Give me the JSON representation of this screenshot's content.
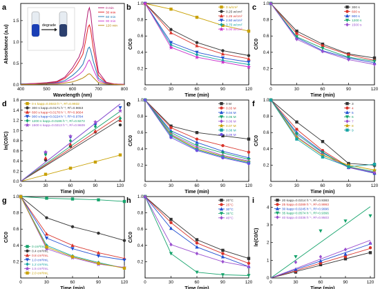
{
  "chart_data": [
    {
      "id": "a",
      "type": "line",
      "panel_label": "a",
      "xlabel": "Wavelength (nm)",
      "ylabel": "Absorbance (a.u)",
      "xlim": [
        400,
        800
      ],
      "xticks": [
        400,
        500,
        600,
        700,
        800
      ],
      "ylim": [
        0,
        1.9
      ],
      "inset_label": "degrade",
      "legend_position": "top-right",
      "colors": [
        "#000000",
        "#ff0000",
        "#0000ff",
        "#ff00ff",
        "#7f3f00"
      ],
      "series": [
        {
          "name": "0 min",
          "color": "#b0156d",
          "x": [
            400,
            450,
            500,
            540,
            570,
            600,
            615,
            625,
            640,
            650,
            660,
            665,
            670,
            680,
            700,
            730,
            760,
            800
          ],
          "y": [
            0.02,
            0.03,
            0.05,
            0.08,
            0.18,
            0.4,
            0.55,
            0.65,
            0.9,
            1.3,
            1.72,
            1.8,
            1.65,
            1.1,
            0.3,
            0.06,
            0.02,
            0.01
          ]
        },
        {
          "name": "30 min",
          "color": "#e31a1c",
          "x": [
            400,
            450,
            500,
            540,
            570,
            600,
            615,
            625,
            640,
            650,
            660,
            665,
            670,
            680,
            700,
            730,
            760,
            800
          ],
          "y": [
            0.02,
            0.03,
            0.04,
            0.07,
            0.15,
            0.32,
            0.45,
            0.55,
            0.72,
            1.02,
            1.35,
            1.4,
            1.28,
            0.85,
            0.22,
            0.05,
            0.02,
            0.01
          ]
        },
        {
          "name": "60 min",
          "color": "#1f78b4",
          "x": [
            400,
            450,
            500,
            540,
            570,
            600,
            615,
            625,
            640,
            650,
            660,
            665,
            670,
            680,
            700,
            730,
            760,
            800
          ],
          "y": [
            0.02,
            0.02,
            0.03,
            0.05,
            0.1,
            0.22,
            0.3,
            0.36,
            0.48,
            0.65,
            0.85,
            0.88,
            0.8,
            0.55,
            0.15,
            0.04,
            0.01,
            0.01
          ]
        },
        {
          "name": "90 min",
          "color": "#cc33cc",
          "x": [
            400,
            450,
            500,
            540,
            570,
            600,
            615,
            625,
            640,
            650,
            660,
            665,
            670,
            680,
            700,
            730,
            760,
            800
          ],
          "y": [
            0.01,
            0.02,
            0.02,
            0.04,
            0.07,
            0.14,
            0.2,
            0.24,
            0.32,
            0.42,
            0.55,
            0.58,
            0.52,
            0.36,
            0.1,
            0.03,
            0.01,
            0.01
          ]
        },
        {
          "name": "120 min",
          "color": "#b8860b",
          "x": [
            400,
            450,
            500,
            540,
            570,
            600,
            615,
            625,
            640,
            650,
            660,
            665,
            670,
            680,
            700,
            730,
            760,
            800
          ],
          "y": [
            0.01,
            0.01,
            0.02,
            0.02,
            0.04,
            0.07,
            0.1,
            0.12,
            0.16,
            0.2,
            0.25,
            0.26,
            0.24,
            0.17,
            0.05,
            0.02,
            0.01,
            0.0
          ]
        }
      ]
    },
    {
      "id": "b",
      "type": "line",
      "panel_label": "b",
      "xlabel": "Time (min)",
      "ylabel": "C/C0",
      "xlim": [
        0,
        120
      ],
      "xticks": [
        0,
        30,
        60,
        90,
        120
      ],
      "ylim": [
        0.0,
        1.0
      ],
      "yticks": [
        0.2,
        0.4,
        0.6,
        0.8,
        1.0
      ],
      "legend_position": "top-right",
      "x": [
        0,
        30,
        60,
        90,
        120
      ],
      "series": [
        {
          "name": "0 w/cm²",
          "color": "#c8a000",
          "values": [
            1.0,
            0.93,
            0.83,
            0.73,
            0.66
          ]
        },
        {
          "name": "0.25 w/cm²",
          "color": "#333333",
          "values": [
            1.0,
            0.68,
            0.52,
            0.42,
            0.36
          ]
        },
        {
          "name": "1.25 w/cm²",
          "color": "#d9342b",
          "values": [
            1.0,
            0.64,
            0.48,
            0.38,
            0.32
          ]
        },
        {
          "name": "2.50 w/cm²",
          "color": "#1f4fd1",
          "values": [
            1.0,
            0.52,
            0.4,
            0.33,
            0.28
          ]
        },
        {
          "name": "3.75 w/cm²",
          "color": "#15a3a3",
          "values": [
            1.0,
            0.49,
            0.37,
            0.3,
            0.25
          ]
        },
        {
          "name": "5.00 w/cm²",
          "color": "#cc33cc",
          "values": [
            1.0,
            0.46,
            0.34,
            0.28,
            0.22
          ]
        }
      ]
    },
    {
      "id": "c",
      "type": "line",
      "panel_label": "c",
      "xlabel": "Time (min)",
      "ylabel": "C/C0",
      "xlim": [
        0,
        120
      ],
      "xticks": [
        0,
        30,
        60,
        90,
        120
      ],
      "ylim": [
        0.0,
        1.0
      ],
      "yticks": [
        0.2,
        0.4,
        0.6,
        0.8,
        1.0
      ],
      "legend_position": "top-right",
      "x": [
        0,
        30,
        60,
        90,
        120
      ],
      "series": [
        {
          "name": "300 s",
          "color": "#333333",
          "values": [
            1.0,
            0.66,
            0.5,
            0.38,
            0.33
          ]
        },
        {
          "name": "600 s",
          "color": "#d9342b",
          "values": [
            1.0,
            0.63,
            0.48,
            0.37,
            0.3
          ]
        },
        {
          "name": "900 s",
          "color": "#1f4fd1",
          "values": [
            1.0,
            0.58,
            0.42,
            0.33,
            0.27
          ]
        },
        {
          "name": "1200 s",
          "color": "#15a36b",
          "values": [
            1.0,
            0.59,
            0.45,
            0.34,
            0.29
          ]
        },
        {
          "name": "1500 s",
          "color": "#9a4fcf",
          "values": [
            1.0,
            0.56,
            0.41,
            0.31,
            0.25
          ]
        }
      ]
    },
    {
      "id": "d",
      "type": "scatter",
      "panel_label": "d",
      "xlabel": "Time (min)",
      "ylabel": "ln(C0/C)",
      "xlim": [
        0,
        125
      ],
      "xticks": [
        0,
        30,
        60,
        90,
        120
      ],
      "ylim": [
        0,
        1.6
      ],
      "legend_position": "top-left",
      "x": [
        0,
        30,
        60,
        90,
        120
      ],
      "series": [
        {
          "name": "0 s",
          "label": "0 s  kapp=0.0043 h⁻¹, R²=0.9932",
          "color": "#c8a000",
          "values": [
            0.0,
            0.14,
            0.26,
            0.38,
            0.52
          ]
        },
        {
          "name": "300 s",
          "label": "300 s  kapp=0.0171 h⁻¹, R²=0.9653",
          "color": "#333333",
          "values": [
            0.0,
            0.42,
            0.69,
            0.97,
            1.11
          ]
        },
        {
          "name": "600 s",
          "label": "600 s  kapp=0.0178 h⁻¹, R²=0.9664",
          "color": "#d9342b",
          "values": [
            0.0,
            0.46,
            0.73,
            0.99,
            1.2
          ]
        },
        {
          "name": "900 s",
          "label": "900 s  kapp=0.0224 h⁻¹, R²=0.9784",
          "color": "#1f4fd1",
          "values": [
            0.0,
            0.54,
            0.87,
            1.11,
            1.45
          ]
        },
        {
          "name": "1200 s",
          "label": "1200 s  kapp=0.0186 h⁻¹, R²=0.9272",
          "color": "#15a36b",
          "values": [
            0.0,
            0.53,
            0.8,
            1.08,
            1.24
          ]
        },
        {
          "name": "1500 s",
          "label": "1500 s  kapp=0.0213 h⁻¹, R²=0.9609",
          "color": "#9a4fcf",
          "values": [
            0.0,
            0.58,
            0.89,
            1.17,
            1.39
          ]
        }
      ]
    },
    {
      "id": "e",
      "type": "line",
      "panel_label": "e",
      "xlabel": "Time (min)",
      "ylabel": "C/C0",
      "xlim": [
        0,
        120
      ],
      "xticks": [
        0,
        30,
        60,
        90,
        120
      ],
      "ylim": [
        0.0,
        1.0
      ],
      "yticks": [
        0.2,
        0.4,
        0.6,
        0.8,
        1.0
      ],
      "legend_position": "top-right",
      "x": [
        0,
        30,
        60,
        90,
        120
      ],
      "series": [
        {
          "name": "0 M",
          "color": "#333333",
          "values": [
            1.0,
            0.68,
            0.6,
            0.56,
            0.52
          ]
        },
        {
          "name": "0.03 M",
          "color": "#d9342b",
          "values": [
            1.0,
            0.66,
            0.52,
            0.44,
            0.36
          ]
        },
        {
          "name": "0.04 M",
          "color": "#1f4fd1",
          "values": [
            1.0,
            0.62,
            0.48,
            0.37,
            0.29
          ]
        },
        {
          "name": "0.05 M",
          "color": "#15a36b",
          "values": [
            1.0,
            0.6,
            0.44,
            0.35,
            0.27
          ]
        },
        {
          "name": "0.06 M",
          "color": "#9a4fcf",
          "values": [
            1.0,
            0.58,
            0.42,
            0.32,
            0.25
          ]
        },
        {
          "name": "0.07 M",
          "color": "#c8a000",
          "values": [
            1.0,
            0.57,
            0.4,
            0.31,
            0.24
          ]
        },
        {
          "name": "0.08 M",
          "color": "#15a3a3",
          "values": [
            1.0,
            0.56,
            0.39,
            0.3,
            0.23
          ]
        },
        {
          "name": "0.09 M",
          "color": "#6a4fe0",
          "values": [
            1.0,
            0.54,
            0.38,
            0.29,
            0.22
          ]
        }
      ]
    },
    {
      "id": "f",
      "type": "line",
      "panel_label": "f",
      "xlabel": "Time (min)",
      "ylabel": "C/C0",
      "xlim": [
        0,
        120
      ],
      "xticks": [
        0,
        30,
        60,
        90,
        120
      ],
      "ylim": [
        0.0,
        1.0
      ],
      "yticks": [
        0.2,
        0.4,
        0.6,
        0.8,
        1.0
      ],
      "legend_position": "top-right",
      "x": [
        0,
        30,
        60,
        90,
        120
      ],
      "series": [
        {
          "name": "3",
          "color": "#333333",
          "values": [
            1.0,
            0.73,
            0.49,
            0.22,
            0.2
          ]
        },
        {
          "name": "4",
          "color": "#d9342b",
          "values": [
            1.0,
            0.64,
            0.38,
            0.18,
            0.1
          ]
        },
        {
          "name": "5",
          "color": "#1f4fd1",
          "values": [
            1.0,
            0.6,
            0.36,
            0.17,
            0.1
          ]
        },
        {
          "name": "6",
          "color": "#15a36b",
          "values": [
            1.0,
            0.58,
            0.35,
            0.18,
            0.12
          ]
        },
        {
          "name": "7",
          "color": "#9a4fcf",
          "values": [
            1.0,
            0.55,
            0.33,
            0.17,
            0.11
          ]
        },
        {
          "name": "8",
          "color": "#c8a000",
          "values": [
            1.0,
            0.54,
            0.32,
            0.2,
            0.14
          ]
        },
        {
          "name": "9",
          "color": "#15a3a3",
          "values": [
            1.0,
            0.52,
            0.3,
            0.18,
            0.21
          ]
        }
      ]
    },
    {
      "id": "g",
      "type": "line",
      "panel_label": "g",
      "xlabel": "Time (min)",
      "ylabel": "C/C0",
      "xlim": [
        0,
        120
      ],
      "xticks": [
        0,
        30,
        60,
        90,
        120
      ],
      "ylim": [
        0.0,
        1.0
      ],
      "yticks": [
        0.2,
        0.4,
        0.6,
        0.8,
        1.0
      ],
      "legend_position": "bottom-left",
      "x": [
        0,
        30,
        60,
        90,
        120
      ],
      "series": [
        {
          "name": "0 cm³/mL",
          "color": "#15a36b",
          "values": [
            1.0,
            0.98,
            0.97,
            0.96,
            0.94
          ]
        },
        {
          "name": "0.4 cm³/mL",
          "color": "#333333",
          "values": [
            1.0,
            0.74,
            0.63,
            0.55,
            0.46
          ]
        },
        {
          "name": "0.8 cm³/mL",
          "color": "#d9342b",
          "values": [
            1.0,
            0.54,
            0.4,
            0.31,
            0.24
          ]
        },
        {
          "name": "1.0 cm³/mL",
          "color": "#1f4fd1",
          "values": [
            1.0,
            0.49,
            0.36,
            0.27,
            0.22
          ]
        },
        {
          "name": "1.2 cm³/mL",
          "color": "#15a3a3",
          "values": [
            1.0,
            0.4,
            0.27,
            0.19,
            0.12
          ]
        },
        {
          "name": "1.5 cm³/mL",
          "color": "#9a4fcf",
          "values": [
            1.0,
            0.36,
            0.25,
            0.17,
            0.13
          ]
        },
        {
          "name": "2.0 cm³/mL",
          "color": "#c8a000",
          "values": [
            1.0,
            0.38,
            0.26,
            0.18,
            0.12
          ]
        }
      ]
    },
    {
      "id": "h",
      "type": "line",
      "panel_label": "h",
      "xlabel": "Time (min)",
      "ylabel": "C/C0",
      "xlim": [
        0,
        120
      ],
      "xticks": [
        0,
        30,
        60,
        90,
        120
      ],
      "ylim": [
        0.0,
        1.0
      ],
      "yticks": [
        0.2,
        0.4,
        0.6,
        0.8,
        1.0
      ],
      "legend_position": "top-right",
      "x": [
        0,
        30,
        60,
        90,
        120
      ],
      "series": [
        {
          "name": "20°C",
          "color": "#333333",
          "values": [
            1.0,
            0.72,
            0.47,
            0.34,
            0.24
          ]
        },
        {
          "name": "25°C",
          "color": "#d9342b",
          "values": [
            1.0,
            0.68,
            0.43,
            0.3,
            0.18
          ]
        },
        {
          "name": "30°C",
          "color": "#1f4fd1",
          "values": [
            1.0,
            0.61,
            0.38,
            0.26,
            0.14
          ]
        },
        {
          "name": "35°C",
          "color": "#15a36b",
          "values": [
            1.0,
            0.3,
            0.07,
            0.04,
            0.03
          ]
        },
        {
          "name": "40°C",
          "color": "#9a4fcf",
          "values": [
            1.0,
            0.41,
            0.3,
            0.2,
            0.14
          ]
        }
      ]
    },
    {
      "id": "i",
      "type": "scatter",
      "panel_label": "i",
      "xlabel": "Time (min)",
      "ylabel": "ln(C0/C)",
      "xlim": [
        0,
        125
      ],
      "xticks": [
        0,
        30,
        60,
        90,
        120
      ],
      "ylim": [
        0,
        4.6
      ],
      "yticks": [
        0,
        1,
        2,
        3,
        4
      ],
      "legend_position": "top-left",
      "x": [
        0,
        30,
        60,
        90,
        120
      ],
      "series": [
        {
          "name": "20°C",
          "label": "20 kapp=0.0214 h⁻¹, R²=0.9383",
          "color": "#333333",
          "values": [
            0.0,
            0.33,
            0.75,
            1.08,
            1.43
          ]
        },
        {
          "name": "25°C",
          "label": "25 kapp=0.0289 h⁻¹, R²=0.9993",
          "color": "#d9342b",
          "values": [
            0.0,
            0.39,
            0.84,
            1.2,
            1.71
          ]
        },
        {
          "name": "30°C",
          "label": "30 kapp=0.0245 h⁻¹, R²=0.9996",
          "color": "#1f4fd1",
          "values": [
            0.0,
            0.49,
            0.97,
            1.35,
            1.97
          ]
        },
        {
          "name": "35°C",
          "label": "35 kapp=0.0574 h⁻¹, R²=0.9366",
          "color": "#15a36b",
          "values": [
            0.0,
            1.2,
            2.66,
            3.22,
            3.51
          ]
        },
        {
          "name": "40°C",
          "label": "40 kapp=0.0336 h⁻¹, R²=0.9503",
          "color": "#9a4fcf",
          "values": [
            0.0,
            0.89,
            1.2,
            1.61,
            1.97
          ]
        }
      ]
    }
  ]
}
